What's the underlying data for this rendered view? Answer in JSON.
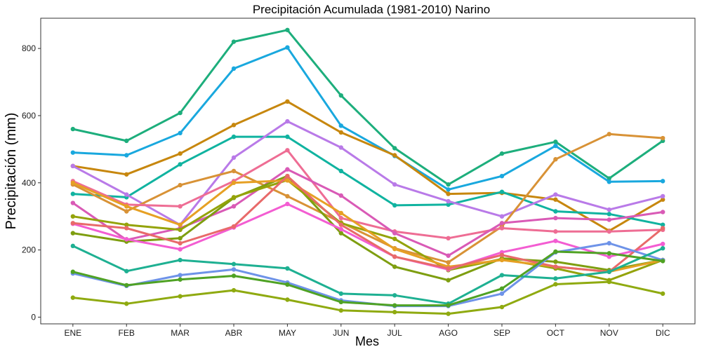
{
  "chart_data": {
    "type": "line",
    "title": "Precipitación Acumulada (1981-2010)  Narino",
    "xlabel": "Mes",
    "ylabel": "Precipitación  (mm)",
    "categories": [
      "ENE",
      "FEB",
      "MAR",
      "ABR",
      "MAY",
      "JUN",
      "JUL",
      "AGO",
      "SEP",
      "OCT",
      "NOV",
      "DIC"
    ],
    "ylim": [
      -20,
      890
    ],
    "yticks": [
      0,
      200,
      400,
      600,
      800
    ],
    "grid": false,
    "legend": "none",
    "series": [
      {
        "color": "#1DAE7C",
        "values": [
          560,
          525,
          608,
          820,
          855,
          660,
          503,
          395,
          487,
          522,
          413,
          525
        ]
      },
      {
        "color": "#19A8DE",
        "values": [
          490,
          482,
          548,
          740,
          803,
          570,
          480,
          380,
          420,
          510,
          403,
          405
        ]
      },
      {
        "color": "#C7870E",
        "values": [
          450,
          425,
          487,
          572,
          642,
          550,
          482,
          367,
          370,
          350,
          257,
          350
        ]
      },
      {
        "color": "#10B3A0",
        "values": [
          367,
          357,
          455,
          537,
          537,
          435,
          333,
          335,
          373,
          315,
          307,
          275
        ]
      },
      {
        "color": "#B97AE8",
        "values": [
          450,
          365,
          275,
          475,
          583,
          505,
          395,
          345,
          300,
          365,
          320,
          360
        ]
      },
      {
        "color": "#D89236",
        "values": [
          395,
          315,
          393,
          435,
          360,
          282,
          205,
          163,
          270,
          470,
          545,
          533
        ]
      },
      {
        "color": "#EE6D94",
        "values": [
          405,
          335,
          330,
          405,
          497,
          295,
          255,
          235,
          265,
          255,
          255,
          260
        ]
      },
      {
        "color": "#D95AB6",
        "values": [
          340,
          230,
          265,
          330,
          440,
          362,
          250,
          183,
          280,
          295,
          290,
          313
        ]
      },
      {
        "color": "#7E9E10",
        "values": [
          250,
          225,
          235,
          355,
          420,
          250,
          150,
          110,
          175,
          165,
          140,
          170
        ]
      },
      {
        "color": "#94A30A",
        "values": [
          300,
          275,
          260,
          357,
          408,
          280,
          233,
          140,
          173,
          145,
          110,
          170
        ]
      },
      {
        "color": "#E6A024",
        "values": [
          400,
          330,
          275,
          400,
          407,
          310,
          203,
          150,
          170,
          150,
          135,
          170
        ]
      },
      {
        "color": "#F35DD2",
        "values": [
          278,
          232,
          202,
          267,
          337,
          262,
          180,
          142,
          193,
          227,
          180,
          218
        ]
      },
      {
        "color": "#E86A6A",
        "values": [
          280,
          265,
          220,
          270,
          420,
          275,
          180,
          145,
          185,
          150,
          135,
          265
        ]
      },
      {
        "color": "#6E93E8",
        "values": [
          130,
          93,
          125,
          142,
          103,
          50,
          33,
          33,
          70,
          193,
          220,
          170
        ]
      },
      {
        "color": "#1EB092",
        "values": [
          212,
          137,
          170,
          158,
          145,
          70,
          65,
          40,
          125,
          115,
          135,
          205
        ]
      },
      {
        "color": "#4FA224",
        "values": [
          135,
          95,
          112,
          123,
          97,
          45,
          35,
          35,
          85,
          195,
          190,
          167
        ]
      },
      {
        "color": "#8FAA10",
        "values": [
          58,
          40,
          62,
          80,
          52,
          20,
          15,
          10,
          30,
          98,
          105,
          70
        ]
      }
    ]
  }
}
